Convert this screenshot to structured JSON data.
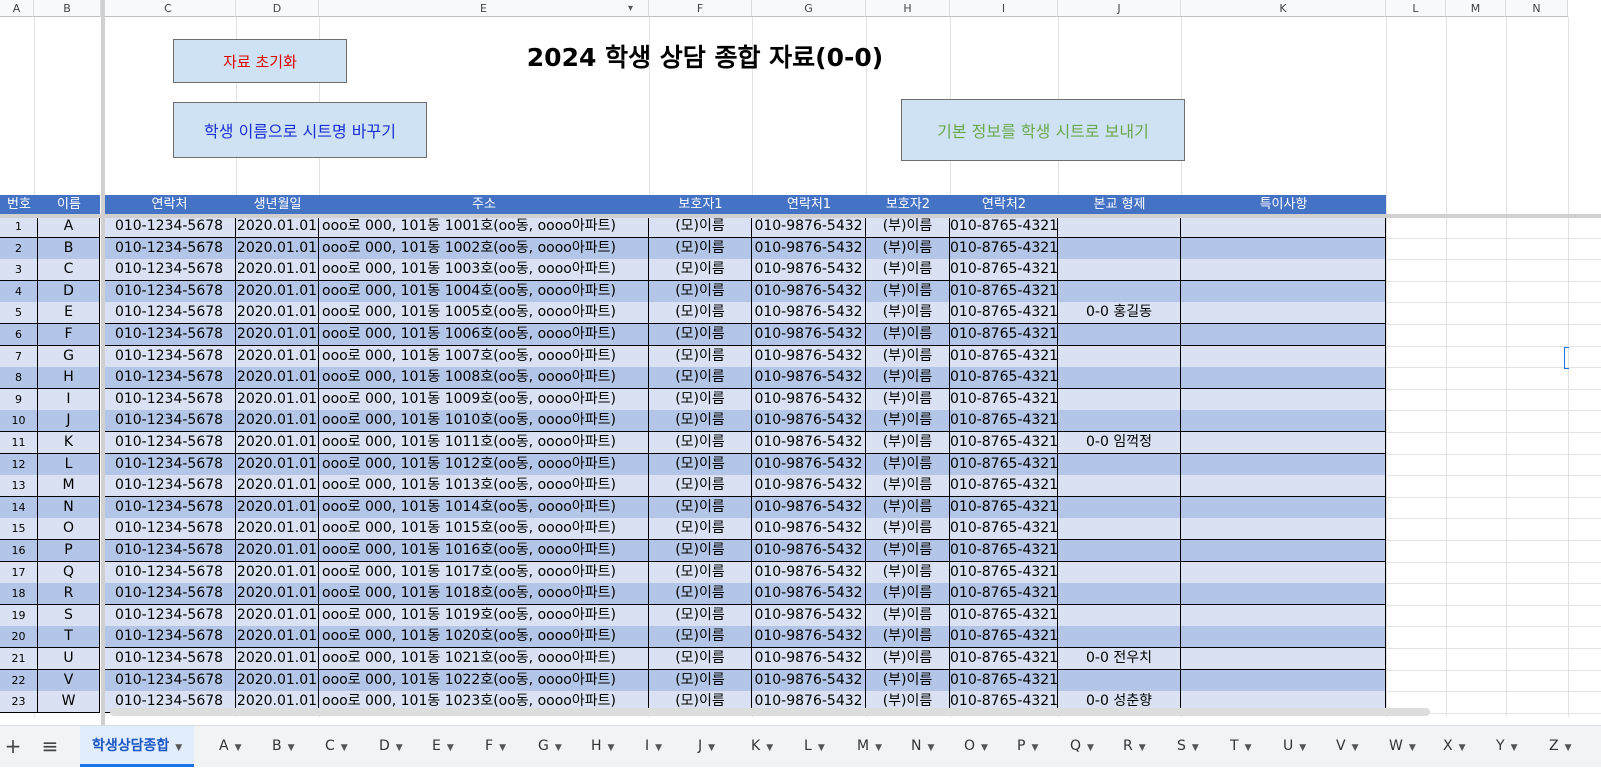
{
  "column_letters": [
    "A",
    "B",
    "C",
    "D",
    "E",
    "F",
    "G",
    "H",
    "I",
    "J",
    "K",
    "L",
    "M",
    "N"
  ],
  "buttons": {
    "reset": "자료 초기화",
    "rename_sheets": "학생 이름으로 시트명 바꾸기",
    "send_info": "기본 정보를 학생 시트로 보내기"
  },
  "colors": {
    "header_bg": "#4472c4",
    "row_light": "#d9e1f2",
    "row_dark": "#b4c6e7",
    "btn_bg": "#cfe2f3",
    "reset_text": "#e00000",
    "rename_text": "#1a2fd6",
    "send_text": "#6aa84f"
  },
  "title": "2024 학생 상담 종합 자료(0-0)",
  "headers": [
    "번호",
    "이름",
    "연락처",
    "생년월일",
    "주소",
    "보호자1",
    "연락처1",
    "보호자2",
    "연락처2",
    "본교 형제",
    "특이사항"
  ],
  "rows": [
    [
      "1",
      "A",
      "010-1234-5678",
      "2020.01.01",
      "ooo로 000, 101동 1001호(oo동, oooo아파트)",
      "(모)이름",
      "010-9876-5432",
      "(부)이름",
      "010-8765-4321",
      "",
      ""
    ],
    [
      "2",
      "B",
      "010-1234-5678",
      "2020.01.01",
      "ooo로 000, 101동 1002호(oo동, oooo아파트)",
      "(모)이름",
      "010-9876-5432",
      "(부)이름",
      "010-8765-4321",
      "",
      ""
    ],
    [
      "3",
      "C",
      "010-1234-5678",
      "2020.01.01",
      "ooo로 000, 101동 1003호(oo동, oooo아파트)",
      "(모)이름",
      "010-9876-5432",
      "(부)이름",
      "010-8765-4321",
      "",
      ""
    ],
    [
      "4",
      "D",
      "010-1234-5678",
      "2020.01.01",
      "ooo로 000, 101동 1004호(oo동, oooo아파트)",
      "(모)이름",
      "010-9876-5432",
      "(부)이름",
      "010-8765-4321",
      "",
      ""
    ],
    [
      "5",
      "E",
      "010-1234-5678",
      "2020.01.01",
      "ooo로 000, 101동 1005호(oo동, oooo아파트)",
      "(모)이름",
      "010-9876-5432",
      "(부)이름",
      "010-8765-4321",
      "0-0 홍길동",
      ""
    ],
    [
      "6",
      "F",
      "010-1234-5678",
      "2020.01.01",
      "ooo로 000, 101동 1006호(oo동, oooo아파트)",
      "(모)이름",
      "010-9876-5432",
      "(부)이름",
      "010-8765-4321",
      "",
      ""
    ],
    [
      "7",
      "G",
      "010-1234-5678",
      "2020.01.01",
      "ooo로 000, 101동 1007호(oo동, oooo아파트)",
      "(모)이름",
      "010-9876-5432",
      "(부)이름",
      "010-8765-4321",
      "",
      ""
    ],
    [
      "8",
      "H",
      "010-1234-5678",
      "2020.01.01",
      "ooo로 000, 101동 1008호(oo동, oooo아파트)",
      "(모)이름",
      "010-9876-5432",
      "(부)이름",
      "010-8765-4321",
      "",
      ""
    ],
    [
      "9",
      "I",
      "010-1234-5678",
      "2020.01.01",
      "ooo로 000, 101동 1009호(oo동, oooo아파트)",
      "(모)이름",
      "010-9876-5432",
      "(부)이름",
      "010-8765-4321",
      "",
      ""
    ],
    [
      "10",
      "J",
      "010-1234-5678",
      "2020.01.01",
      "ooo로 000, 101동 1010호(oo동, oooo아파트)",
      "(모)이름",
      "010-9876-5432",
      "(부)이름",
      "010-8765-4321",
      "",
      ""
    ],
    [
      "11",
      "K",
      "010-1234-5678",
      "2020.01.01",
      "ooo로 000, 101동 1011호(oo동, oooo아파트)",
      "(모)이름",
      "010-9876-5432",
      "(부)이름",
      "010-8765-4321",
      "0-0 임꺽정",
      ""
    ],
    [
      "12",
      "L",
      "010-1234-5678",
      "2020.01.01",
      "ooo로 000, 101동 1012호(oo동, oooo아파트)",
      "(모)이름",
      "010-9876-5432",
      "(부)이름",
      "010-8765-4321",
      "",
      ""
    ],
    [
      "13",
      "M",
      "010-1234-5678",
      "2020.01.01",
      "ooo로 000, 101동 1013호(oo동, oooo아파트)",
      "(모)이름",
      "010-9876-5432",
      "(부)이름",
      "010-8765-4321",
      "",
      ""
    ],
    [
      "14",
      "N",
      "010-1234-5678",
      "2020.01.01",
      "ooo로 000, 101동 1014호(oo동, oooo아파트)",
      "(모)이름",
      "010-9876-5432",
      "(부)이름",
      "010-8765-4321",
      "",
      ""
    ],
    [
      "15",
      "O",
      "010-1234-5678",
      "2020.01.01",
      "ooo로 000, 101동 1015호(oo동, oooo아파트)",
      "(모)이름",
      "010-9876-5432",
      "(부)이름",
      "010-8765-4321",
      "",
      ""
    ],
    [
      "16",
      "P",
      "010-1234-5678",
      "2020.01.01",
      "ooo로 000, 101동 1016호(oo동, oooo아파트)",
      "(모)이름",
      "010-9876-5432",
      "(부)이름",
      "010-8765-4321",
      "",
      ""
    ],
    [
      "17",
      "Q",
      "010-1234-5678",
      "2020.01.01",
      "ooo로 000, 101동 1017호(oo동, oooo아파트)",
      "(모)이름",
      "010-9876-5432",
      "(부)이름",
      "010-8765-4321",
      "",
      ""
    ],
    [
      "18",
      "R",
      "010-1234-5678",
      "2020.01.01",
      "ooo로 000, 101동 1018호(oo동, oooo아파트)",
      "(모)이름",
      "010-9876-5432",
      "(부)이름",
      "010-8765-4321",
      "",
      ""
    ],
    [
      "19",
      "S",
      "010-1234-5678",
      "2020.01.01",
      "ooo로 000, 101동 1019호(oo동, oooo아파트)",
      "(모)이름",
      "010-9876-5432",
      "(부)이름",
      "010-8765-4321",
      "",
      ""
    ],
    [
      "20",
      "T",
      "010-1234-5678",
      "2020.01.01",
      "ooo로 000, 101동 1020호(oo동, oooo아파트)",
      "(모)이름",
      "010-9876-5432",
      "(부)이름",
      "010-8765-4321",
      "",
      ""
    ],
    [
      "21",
      "U",
      "010-1234-5678",
      "2020.01.01",
      "ooo로 000, 101동 1021호(oo동, oooo아파트)",
      "(모)이름",
      "010-9876-5432",
      "(부)이름",
      "010-8765-4321",
      "0-0 전우치",
      ""
    ],
    [
      "22",
      "V",
      "010-1234-5678",
      "2020.01.01",
      "ooo로 000, 101동 1022호(oo동, oooo아파트)",
      "(모)이름",
      "010-9876-5432",
      "(부)이름",
      "010-8765-4321",
      "",
      ""
    ],
    [
      "23",
      "W",
      "010-1234-5678",
      "2020.01.01",
      "ooo로 000, 101동 1023호(oo동, oooo아파트)",
      "(모)이름",
      "010-9876-5432",
      "(부)이름",
      "010-8765-4321",
      "0-0 성춘향",
      ""
    ]
  ],
  "sheet_tabs": {
    "add_icon": "plus-icon",
    "menu_icon": "menu-icon",
    "active": "학생상담종합",
    "others": [
      "A",
      "B",
      "C",
      "D",
      "E",
      "F",
      "G",
      "H",
      "I",
      "J",
      "K",
      "L",
      "M",
      "N",
      "O",
      "P",
      "Q",
      "R",
      "S",
      "T",
      "U",
      "V",
      "W",
      "X",
      "Y",
      "Z"
    ]
  }
}
